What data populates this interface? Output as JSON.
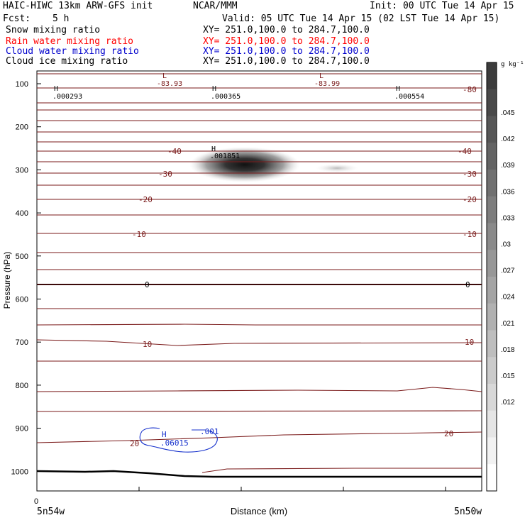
{
  "header": {
    "title": "HAIC-HIWC 13km ARW-GFS init",
    "org": "NCAR/MMM",
    "init": "Init: 00 UTC Tue 14 Apr 15",
    "fcst_label": "Fcst:",
    "fcst_value": "5 h",
    "valid": "Valid: 05 UTC Tue 14 Apr 15 (02 LST Tue 14 Apr 15)"
  },
  "fields": [
    {
      "name": "Snow mixing ratio",
      "xy": "XY= 251.0,100.0 to 284.7,100.0",
      "color": "#000000"
    },
    {
      "name": "Rain water mixing ratio",
      "xy": "XY= 251.0,100.0 to 284.7,100.0",
      "color": "#ff0000"
    },
    {
      "name": "Cloud water mixing ratio",
      "xy": "XY= 251.0,100.0 to 284.7,100.0",
      "color": "#0000cc"
    },
    {
      "name": "Cloud ice mixing ratio",
      "xy": "XY= 251.0,100.0 to 284.7,100.0",
      "color": "#000000"
    }
  ],
  "chart_data": {
    "type": "heatmap",
    "xlabel": "Distance (km)",
    "ylabel": "Pressure (hPa)",
    "x_ticks": [
      "0"
    ],
    "x_endpoints": [
      "5n54w",
      "5n50w"
    ],
    "y_ticks": [
      100,
      200,
      300,
      400,
      500,
      600,
      700,
      800,
      900,
      1000
    ],
    "ylim": [
      1050,
      50
    ],
    "colorbar": {
      "unit": "g kg⁻¹",
      "ticks": [
        ".045",
        ".042",
        ".039",
        ".036",
        ".033",
        ".03",
        ".027",
        ".024",
        ".021",
        ".018",
        ".015",
        ".012"
      ],
      "max": 0.048
    },
    "ice_maximum": {
      "label": "H",
      "value": ".001851",
      "pressure": 270
    },
    "markers": [
      {
        "type": "H",
        "value": ".000293",
        "pressure": 110
      },
      {
        "type": "H",
        "value": ".000365",
        "pressure": 110
      },
      {
        "type": "H",
        "value": ".000554",
        "pressure": 110
      },
      {
        "type": "L",
        "value": "-83.93",
        "pressure": 90
      },
      {
        "type": "L",
        "value": "-83.99",
        "pressure": 90
      }
    ],
    "cloud_water": {
      "label": "H",
      "value": ".06015",
      "contour": ".001",
      "pressure": 940
    },
    "temperature_contours": [
      {
        "value": "-80",
        "labels": [
          "-80"
        ]
      },
      {
        "value": "-40",
        "labels": [
          "-40",
          "-40"
        ]
      },
      {
        "value": "-30",
        "labels": [
          "-30",
          "-30"
        ]
      },
      {
        "value": "-20",
        "labels": [
          "-20",
          "-20"
        ]
      },
      {
        "value": "-10",
        "labels": [
          "-10",
          "-10"
        ]
      },
      {
        "value": "0",
        "labels": [
          "0",
          "0"
        ]
      },
      {
        "value": "10",
        "labels": [
          "10",
          "10"
        ]
      },
      {
        "value": "20",
        "labels": [
          "20",
          "20"
        ]
      }
    ]
  }
}
